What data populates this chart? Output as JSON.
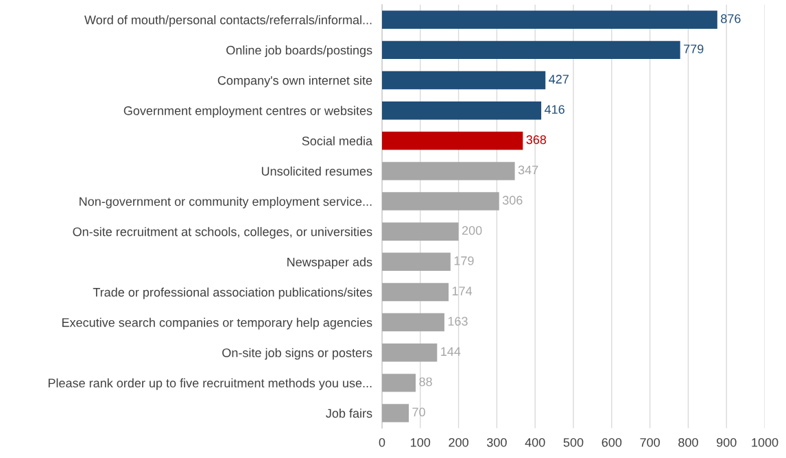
{
  "chart_data": {
    "type": "bar",
    "orientation": "horizontal",
    "categories": [
      "Word of mouth/personal contacts/referrals/informal...",
      "Online job boards/postings",
      "Company's own internet site",
      "Government employment centres or websites",
      "Social media",
      "Unsolicited resumes",
      "Non-government or community employment service...",
      "On-site recruitment at schools, colleges, or universities",
      "Newspaper ads",
      "Trade or professional association publications/sites",
      "Executive search companies or temporary help agencies",
      "On-site job signs or posters",
      "Please rank order up to five recruitment methods you use...",
      "Job fairs"
    ],
    "values": [
      876,
      779,
      427,
      416,
      368,
      347,
      306,
      200,
      179,
      174,
      163,
      144,
      88,
      70
    ],
    "colors": [
      "#1f4e79",
      "#1f4e79",
      "#1f4e79",
      "#1f4e79",
      "#c00000",
      "#a6a6a6",
      "#a6a6a6",
      "#a6a6a6",
      "#a6a6a6",
      "#a6a6a6",
      "#a6a6a6",
      "#a6a6a6",
      "#a6a6a6",
      "#a6a6a6"
    ],
    "xlim": [
      0,
      1000
    ],
    "xticks": [
      0,
      100,
      200,
      300,
      400,
      500,
      600,
      700,
      800,
      900,
      1000
    ],
    "grid": "x",
    "data_labels": true
  }
}
